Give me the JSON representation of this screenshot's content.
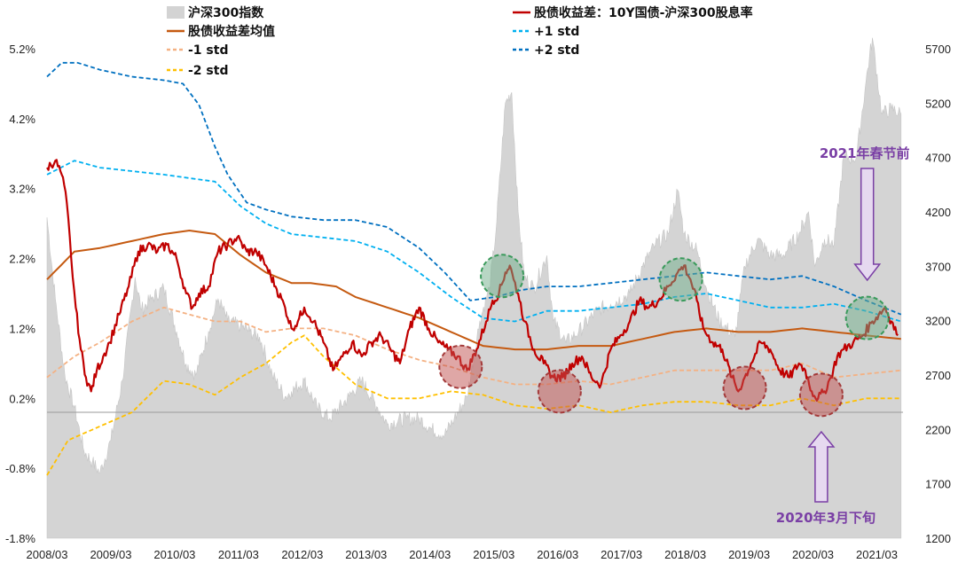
{
  "chart_data": {
    "type": "line",
    "x_ticks": [
      "2008/03",
      "2009/03",
      "2010/03",
      "2011/03",
      "2012/03",
      "2013/03",
      "2014/03",
      "2015/03",
      "2016/03",
      "2017/03",
      "2018/03",
      "2019/03",
      "2020/03",
      "2021/03"
    ],
    "y_left": {
      "ticks": [
        "5.2%",
        "4.2%",
        "3.2%",
        "2.2%",
        "1.2%",
        "0.2%",
        "-0.8%",
        "-1.8%"
      ],
      "range": [
        -1.8,
        5.2
      ]
    },
    "y_right": {
      "ticks": [
        "5700",
        "5200",
        "4700",
        "4200",
        "3700",
        "3200",
        "2700",
        "2200",
        "1700",
        "1200"
      ],
      "range": [
        1200,
        5700
      ]
    },
    "legend": [
      {
        "key": "index",
        "label": "沪深300指数",
        "color": "#d3d3d3",
        "style": "area"
      },
      {
        "key": "spread",
        "label": "股债收益差：10Y国债-沪深300股息率",
        "color": "#c00000",
        "style": "line"
      },
      {
        "key": "mean",
        "label": "股债收益差均值",
        "color": "#c55a11",
        "style": "line"
      },
      {
        "key": "p1",
        "label": "+1 std",
        "color": "#00b0f0",
        "style": "dash"
      },
      {
        "key": "m1",
        "label": "-1 std",
        "color": "#f4b183",
        "style": "dash"
      },
      {
        "key": "p2",
        "label": "+2 std",
        "color": "#0070c0",
        "style": "dash"
      },
      {
        "key": "m2",
        "label": "-2 std",
        "color": "#ffc000",
        "style": "dash"
      }
    ],
    "series": [
      {
        "name": "沪深300指数",
        "axis": "right",
        "x": [
          2008.17,
          2008.3,
          2008.45,
          2008.6,
          2008.75,
          2008.88,
          2009.0,
          2009.17,
          2009.35,
          2009.55,
          2009.65,
          2009.8,
          2010.0,
          2010.2,
          2010.35,
          2010.5,
          2010.7,
          2010.85,
          2011.0,
          2011.2,
          2011.35,
          2011.5,
          2011.7,
          2011.9,
          2012.0,
          2012.2,
          2012.4,
          2012.6,
          2012.9,
          2013.1,
          2013.35,
          2013.5,
          2013.8,
          2014.0,
          2014.2,
          2014.4,
          2014.55,
          2014.75,
          2014.95,
          2015.1,
          2015.2,
          2015.35,
          2015.45,
          2015.55,
          2015.65,
          2015.8,
          2016.0,
          2016.1,
          2016.3,
          2016.5,
          2016.8,
          2017.0,
          2017.3,
          2017.5,
          2017.7,
          2017.9,
          2018.05,
          2018.15,
          2018.35,
          2018.5,
          2018.7,
          2018.95,
          2019.1,
          2019.3,
          2019.5,
          2019.7,
          2019.95,
          2020.1,
          2020.2,
          2020.35,
          2020.5,
          2020.65,
          2020.85,
          2021.0,
          2021.1,
          2021.25,
          2021.4,
          2021.55
        ],
        "values": [
          4150,
          3400,
          2700,
          2400,
          2000,
          1900,
          1800,
          2100,
          2650,
          3600,
          3300,
          3400,
          3500,
          3100,
          2800,
          2700,
          3100,
          3400,
          3200,
          3150,
          3100,
          3050,
          2700,
          2500,
          2550,
          2650,
          2400,
          2300,
          2500,
          2650,
          2400,
          2250,
          2300,
          2300,
          2200,
          2150,
          2300,
          2500,
          3200,
          3500,
          4000,
          5200,
          5300,
          4200,
          3600,
          3500,
          3800,
          3200,
          3000,
          3100,
          3300,
          3350,
          3450,
          3700,
          3900,
          4000,
          4400,
          4000,
          3850,
          3500,
          3200,
          3050,
          3700,
          3950,
          3800,
          3800,
          4000,
          4200,
          3700,
          3950,
          3900,
          4700,
          4700,
          5400,
          5800,
          5100,
          5150,
          5100
        ]
      },
      {
        "name": "股债收益差：10Y国债-沪深300股息率",
        "axis": "left",
        "x": [
          2008.17,
          2008.3,
          2008.4,
          2008.48,
          2008.55,
          2008.62,
          2008.7,
          2008.78,
          2008.86,
          2008.95,
          2009.05,
          2009.15,
          2009.3,
          2009.45,
          2009.6,
          2009.75,
          2009.9,
          2010.05,
          2010.2,
          2010.35,
          2010.45,
          2010.55,
          2010.7,
          2010.85,
          2011.0,
          2011.15,
          2011.3,
          2011.45,
          2011.6,
          2011.75,
          2011.9,
          2012.0,
          2012.1,
          2012.2,
          2012.35,
          2012.5,
          2012.65,
          2012.8,
          2012.95,
          2013.1,
          2013.25,
          2013.4,
          2013.55,
          2013.7,
          2013.85,
          2014.0,
          2014.15,
          2014.3,
          2014.45,
          2014.6,
          2014.75,
          2014.9,
          2015.05,
          2015.15,
          2015.25,
          2015.35,
          2015.42,
          2015.48,
          2015.55,
          2015.65,
          2015.8,
          2015.95,
          2016.1,
          2016.25,
          2016.4,
          2016.55,
          2016.7,
          2016.85,
          2017.0,
          2017.15,
          2017.3,
          2017.45,
          2017.6,
          2017.75,
          2017.9,
          2018.05,
          2018.15,
          2018.25,
          2018.35,
          2018.45,
          2018.6,
          2018.75,
          2018.9,
          2019.0,
          2019.1,
          2019.2,
          2019.35,
          2019.5,
          2019.65,
          2019.8,
          2019.95,
          2020.05,
          2020.15,
          2020.25,
          2020.35,
          2020.45,
          2020.55,
          2020.65,
          2020.8,
          2020.95,
          2021.1,
          2021.2,
          2021.3,
          2021.4,
          2021.5
        ],
        "values": [
          3.5,
          3.6,
          3.4,
          3.0,
          2.2,
          1.5,
          0.9,
          0.5,
          0.3,
          0.6,
          0.8,
          1.0,
          1.4,
          1.8,
          2.3,
          2.4,
          2.3,
          2.4,
          2.2,
          1.7,
          1.5,
          1.7,
          1.8,
          2.3,
          2.4,
          2.5,
          2.3,
          2.3,
          2.1,
          1.8,
          1.5,
          1.2,
          1.3,
          1.5,
          1.3,
          1.0,
          0.6,
          0.8,
          1.0,
          0.8,
          1.0,
          1.1,
          0.9,
          0.7,
          1.2,
          1.5,
          1.2,
          1.0,
          0.9,
          0.8,
          0.6,
          0.9,
          1.3,
          1.6,
          1.7,
          2.0,
          2.1,
          1.9,
          1.7,
          1.3,
          0.9,
          0.7,
          0.5,
          0.5,
          0.7,
          0.8,
          0.5,
          0.4,
          0.9,
          1.1,
          1.3,
          1.6,
          1.5,
          1.6,
          1.8,
          2.0,
          2.1,
          1.9,
          1.6,
          1.2,
          1.0,
          0.9,
          0.5,
          0.3,
          0.5,
          0.7,
          1.0,
          0.9,
          0.6,
          0.5,
          0.7,
          0.6,
          0.3,
          0.2,
          0.3,
          0.5,
          0.8,
          0.9,
          1.0,
          1.1,
          1.3,
          1.4,
          1.5,
          1.3,
          1.1
        ]
      },
      {
        "name": "股债收益差均值",
        "axis": "left",
        "x": [
          2008.17,
          2008.6,
          2009.0,
          2009.5,
          2010.0,
          2010.4,
          2010.8,
          2011.2,
          2011.6,
          2012.0,
          2012.3,
          2012.7,
          2013.0,
          2013.5,
          2014.0,
          2014.5,
          2015.0,
          2015.5,
          2016.0,
          2016.5,
          2017.0,
          2017.5,
          2018.0,
          2018.5,
          2019.0,
          2019.5,
          2020.0,
          2020.5,
          2021.0,
          2021.55
        ],
        "values": [
          1.9,
          2.3,
          2.35,
          2.45,
          2.55,
          2.6,
          2.55,
          2.25,
          2.0,
          1.85,
          1.85,
          1.8,
          1.65,
          1.5,
          1.35,
          1.15,
          0.95,
          0.9,
          0.9,
          0.95,
          0.95,
          1.05,
          1.15,
          1.2,
          1.15,
          1.15,
          1.2,
          1.15,
          1.1,
          1.05
        ]
      },
      {
        "name": "+1 std",
        "axis": "left",
        "x": [
          2008.17,
          2008.6,
          2009.0,
          2009.5,
          2010.0,
          2010.4,
          2010.8,
          2011.2,
          2011.6,
          2012.0,
          2012.5,
          2013.0,
          2013.5,
          2014.0,
          2014.5,
          2015.0,
          2015.5,
          2016.0,
          2016.5,
          2017.0,
          2017.5,
          2018.0,
          2018.5,
          2019.0,
          2019.5,
          2020.0,
          2020.5,
          2021.0,
          2021.55
        ],
        "values": [
          3.4,
          3.6,
          3.5,
          3.45,
          3.4,
          3.35,
          3.3,
          2.95,
          2.7,
          2.55,
          2.5,
          2.45,
          2.3,
          2.0,
          1.65,
          1.35,
          1.3,
          1.45,
          1.45,
          1.5,
          1.55,
          1.65,
          1.7,
          1.6,
          1.5,
          1.5,
          1.55,
          1.45,
          1.3
        ]
      },
      {
        "name": "-1 std",
        "axis": "left",
        "x": [
          2008.17,
          2008.6,
          2009.0,
          2009.5,
          2010.0,
          2010.4,
          2010.8,
          2011.2,
          2011.6,
          2012.0,
          2012.5,
          2013.0,
          2013.5,
          2014.0,
          2014.5,
          2015.0,
          2015.5,
          2016.0,
          2016.5,
          2017.0,
          2017.5,
          2018.0,
          2018.5,
          2019.0,
          2019.5,
          2020.0,
          2020.5,
          2021.0,
          2021.55
        ],
        "values": [
          0.5,
          0.8,
          1.0,
          1.3,
          1.5,
          1.4,
          1.3,
          1.3,
          1.15,
          1.2,
          1.2,
          1.1,
          0.9,
          0.75,
          0.65,
          0.5,
          0.4,
          0.4,
          0.45,
          0.4,
          0.5,
          0.6,
          0.6,
          0.6,
          0.6,
          0.7,
          0.5,
          0.55,
          0.6
        ]
      },
      {
        "name": "+2 std",
        "axis": "left",
        "x": [
          2008.17,
          2008.4,
          2008.65,
          2009.0,
          2009.5,
          2010.0,
          2010.3,
          2010.55,
          2010.8,
          2011.0,
          2011.3,
          2011.6,
          2012.0,
          2012.5,
          2013.0,
          2013.5,
          2014.0,
          2014.4,
          2014.8,
          2015.2,
          2015.6,
          2016.0,
          2016.5,
          2017.0,
          2017.5,
          2018.0,
          2018.5,
          2019.0,
          2019.5,
          2020.0,
          2020.5,
          2021.0,
          2021.55
        ],
        "values": [
          4.8,
          5.0,
          5.0,
          4.9,
          4.8,
          4.75,
          4.7,
          4.4,
          3.8,
          3.4,
          3.0,
          2.9,
          2.8,
          2.75,
          2.75,
          2.65,
          2.35,
          2.0,
          1.6,
          1.65,
          1.75,
          1.8,
          1.8,
          1.85,
          1.9,
          1.95,
          2.0,
          1.95,
          1.9,
          1.95,
          1.8,
          1.6,
          1.4
        ]
      },
      {
        "name": "-2 std",
        "axis": "left",
        "x": [
          2008.17,
          2008.5,
          2009.0,
          2009.5,
          2010.0,
          2010.4,
          2010.8,
          2011.2,
          2011.6,
          2012.0,
          2012.2,
          2012.5,
          2013.0,
          2013.5,
          2014.0,
          2014.5,
          2015.0,
          2015.5,
          2016.0,
          2016.5,
          2017.0,
          2017.5,
          2018.0,
          2018.5,
          2019.0,
          2019.5,
          2020.0,
          2020.5,
          2021.0,
          2021.55
        ],
        "values": [
          -0.9,
          -0.4,
          -0.2,
          0.0,
          0.45,
          0.4,
          0.25,
          0.5,
          0.7,
          1.0,
          1.1,
          0.8,
          0.4,
          0.2,
          0.2,
          0.3,
          0.25,
          0.1,
          0.05,
          0.1,
          0.0,
          0.1,
          0.15,
          0.15,
          0.1,
          0.1,
          0.2,
          0.1,
          0.2,
          0.2
        ]
      }
    ],
    "highlights": [
      {
        "kind": "high",
        "x": 2015.3,
        "y": 1.95,
        "color": "#70ad8a"
      },
      {
        "kind": "high",
        "x": 2018.1,
        "y": 1.9,
        "color": "#70ad8a"
      },
      {
        "kind": "high",
        "x": 2021.02,
        "y": 1.35,
        "color": "#70ad8a"
      },
      {
        "kind": "low",
        "x": 2014.65,
        "y": 0.65,
        "color": "#c0504d"
      },
      {
        "kind": "low",
        "x": 2016.2,
        "y": 0.3,
        "color": "#c0504d"
      },
      {
        "kind": "low",
        "x": 2019.1,
        "y": 0.35,
        "color": "#c0504d"
      },
      {
        "kind": "low",
        "x": 2020.3,
        "y": 0.25,
        "color": "#c0504d"
      }
    ],
    "annotations": [
      {
        "text": "2021年春节前",
        "points_to_x": 2021.02,
        "direction": "down"
      },
      {
        "text": "2020年3月下旬",
        "points_to_x": 2020.3,
        "direction": "up"
      }
    ]
  }
}
